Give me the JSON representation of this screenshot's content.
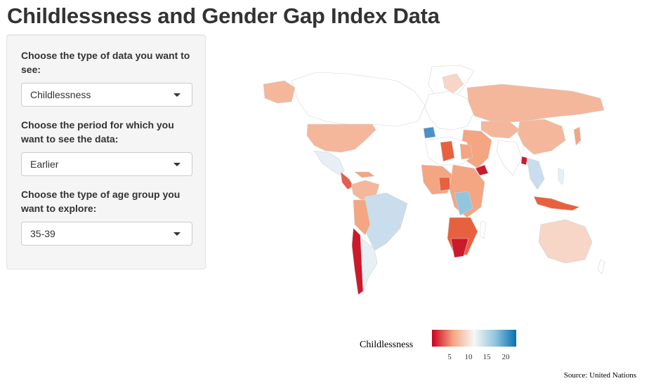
{
  "page": {
    "title": "Childlessness and Gender Gap Index Data",
    "source": "Source: United Nations"
  },
  "sidebar": {
    "data_type": {
      "label": "Choose the type of data you want to see:",
      "selected": "Childlessness"
    },
    "period": {
      "label": "Choose the period for which you want to see the data:",
      "selected": "Earlier"
    },
    "age_group": {
      "label": "Choose the type of age group you want to explore:",
      "selected": "35-39"
    }
  },
  "legend": {
    "title": "Childlessness",
    "ticks": [
      "5",
      "10",
      "15",
      "20"
    ],
    "colors": [
      "#ca0020",
      "#f4a582",
      "#f7f7f7",
      "#92c5de",
      "#0571b0"
    ]
  },
  "map": {
    "colors": {
      "no_data": "#ffffff",
      "border": "#d4d4d4",
      "low": "#ca0020",
      "mid_low": "#e8613f",
      "light": "#f4a582",
      "neutral": "#f7f7f7",
      "light_blue": "#c6dbef",
      "mid_blue": "#6baed6",
      "high": "#3182bd"
    }
  }
}
